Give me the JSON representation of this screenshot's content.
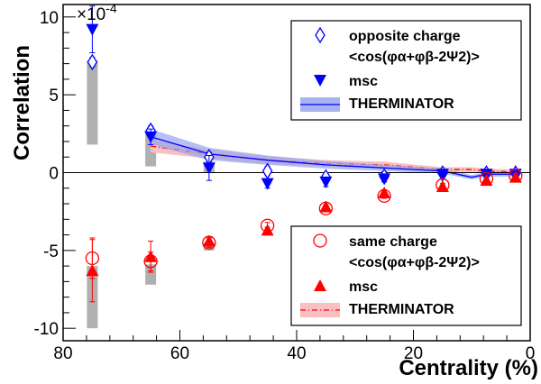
{
  "chart_data": {
    "type": "scatter",
    "xlabel": "Centrality (%)",
    "ylabel": "Correlation",
    "exponent_label": "×10",
    "exponent_power": "-4",
    "xlim": [
      80,
      0
    ],
    "ylim": [
      -10.8,
      10.8
    ],
    "x_ticks": [
      80,
      60,
      40,
      20,
      0
    ],
    "y_ticks": [
      10,
      5,
      0,
      -5,
      -10
    ],
    "x_tick_labels": [
      "80",
      "60",
      "40",
      "20",
      "0"
    ],
    "y_tick_labels": [
      "10",
      "5",
      "0",
      "-5",
      "-10"
    ],
    "grid": false,
    "zero_line": true,
    "legends": [
      {
        "placement": "top-right",
        "entries": [
          {
            "label": "opposite charge",
            "symbol": "open-diamond",
            "color": "#0000ff"
          },
          {
            "label": "<cos(φα+φβ-2Ψ2)>",
            "symbol": "none"
          },
          {
            "label": "msc",
            "symbol": "filled-down-triangle",
            "color": "#0000ff"
          },
          {
            "label": "THERMINATOR",
            "symbol": "band-line",
            "color": "#0000ff",
            "band_color": "#a8b4f0"
          }
        ]
      },
      {
        "placement": "bottom-right",
        "entries": [
          {
            "label": "same charge",
            "symbol": "open-circle",
            "color": "#ff0000"
          },
          {
            "label": "<cos(φα+φβ-2Ψ2)>",
            "symbol": "none"
          },
          {
            "label": "msc",
            "symbol": "filled-up-triangle",
            "color": "#ff0000"
          },
          {
            "label": "THERMINATOR",
            "symbol": "band-dashdot",
            "color": "#ff0000",
            "band_color": "#f8c0c0"
          }
        ]
      }
    ],
    "series": [
      {
        "key": "opposite",
        "marker": "open-diamond",
        "color": "#0000ff",
        "x": [
          75,
          65,
          55,
          45,
          35,
          25,
          15,
          7.5,
          2.5
        ],
        "y": [
          7.1,
          2.7,
          1.0,
          0.1,
          -0.3,
          -0.25,
          -0.05,
          -0.05,
          -0.05
        ],
        "err": [
          0.3,
          0.3,
          0.3,
          0.3,
          0.3,
          0.3,
          0.2,
          0.2,
          0.2
        ]
      },
      {
        "key": "opposite_msc",
        "marker": "filled-down-triangle",
        "color": "#0000ff",
        "x": [
          75,
          65,
          55,
          45,
          35,
          25,
          15,
          7.5,
          2.5
        ],
        "y": [
          9.2,
          2.3,
          0.3,
          -0.7,
          -0.6,
          -0.4,
          -0.1,
          -0.1,
          -0.1
        ],
        "err": [
          1.5,
          0.5,
          0.8,
          0.3,
          0.3,
          0.2,
          0.2,
          0.2,
          0.2
        ]
      },
      {
        "key": "same",
        "marker": "open-circle",
        "color": "#ff0000",
        "x": [
          75,
          65,
          55,
          45,
          35,
          25,
          15,
          7.5,
          2.5
        ],
        "y": [
          -5.5,
          -5.7,
          -4.5,
          -3.4,
          -2.3,
          -1.5,
          -0.8,
          -0.4,
          -0.2
        ],
        "err": [
          1.3,
          0.6,
          0.3,
          0.2,
          0.15,
          0.15,
          0.1,
          0.1,
          0.1
        ]
      },
      {
        "key": "same_msc",
        "marker": "filled-up-triangle",
        "color": "#ff0000",
        "x": [
          75,
          65,
          55,
          45,
          35,
          25,
          15,
          7.5,
          2.5
        ],
        "y": [
          -6.3,
          -5.4,
          -4.4,
          -3.7,
          -2.2,
          -1.3,
          -0.9,
          -0.5,
          -0.3
        ],
        "err": [
          2.0,
          1.0,
          0.3,
          0.2,
          0.15,
          0.15,
          0.1,
          0.1,
          0.1
        ]
      }
    ],
    "systematics": {
      "color": "#b0b0b0",
      "opposite": [
        [
          75,
          1.8,
          7.2
        ],
        [
          65,
          0.4,
          2.5
        ],
        [
          55,
          0.0,
          0.7
        ]
      ],
      "same": [
        [
          75,
          -10.0,
          -6.0
        ],
        [
          65,
          -7.2,
          -5.9
        ],
        [
          55,
          -5.0,
          -4.5
        ]
      ]
    },
    "therminator_opposite": {
      "x": [
        65,
        55,
        45,
        35,
        25,
        15,
        10,
        7.5,
        2.5
      ],
      "y": [
        2.3,
        1.2,
        0.8,
        0.5,
        0.3,
        0.1,
        -0.3,
        -0.1,
        -0.1
      ],
      "band": [
        0.5,
        0.4,
        0.3,
        0.25,
        0.2,
        0.15,
        0.15,
        0.15,
        0.15
      ]
    },
    "therminator_same": {
      "x": [
        65,
        55,
        45,
        35,
        25,
        15,
        10,
        7.5,
        2.5
      ],
      "y": [
        1.7,
        1.2,
        0.8,
        0.6,
        0.5,
        0.2,
        0.2,
        0.1,
        0.05
      ],
      "band": [
        0.4,
        0.3,
        0.25,
        0.2,
        0.2,
        0.15,
        0.15,
        0.15,
        0.15
      ]
    }
  }
}
